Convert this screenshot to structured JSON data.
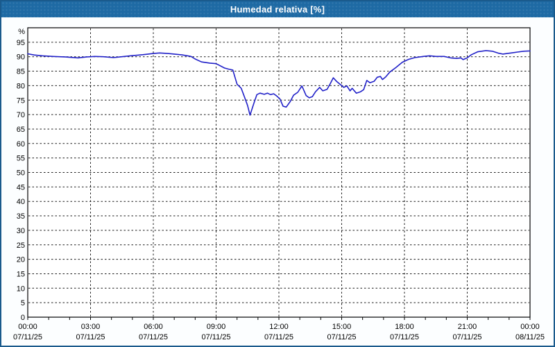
{
  "window": {
    "title": "Humedad relativa [%]"
  },
  "colors": {
    "frame_border": "#1A5A8C",
    "titlebar_bg": "#1E6AA4",
    "titlebar_text": "#FFFFFF",
    "page_bg": "#FCFEFF",
    "plot_bg": "#FFFFFF",
    "plot_border": "#000000",
    "grid": "#1A1A1A",
    "tick": "#000000",
    "label": "#000000",
    "line": "#2020C8"
  },
  "chart_data": {
    "type": "line",
    "title": "Humedad relativa [%]",
    "ylabel": "%",
    "xlabel": "",
    "xlim": [
      0,
      24
    ],
    "ylim": [
      0,
      100
    ],
    "grid": "dashed",
    "legend": "none",
    "ytick_labels": [
      0,
      5,
      10,
      15,
      20,
      25,
      30,
      35,
      40,
      45,
      50,
      55,
      60,
      65,
      70,
      75,
      80,
      85,
      90,
      95
    ],
    "minor_xtick_every_hours": 1,
    "xticks": [
      {
        "h": 0,
        "time": "00:00",
        "date": "07/11/25"
      },
      {
        "h": 3,
        "time": "03:00",
        "date": "07/11/25"
      },
      {
        "h": 6,
        "time": "06:00",
        "date": "07/11/25"
      },
      {
        "h": 9,
        "time": "09:00",
        "date": "07/11/25"
      },
      {
        "h": 12,
        "time": "12:00",
        "date": "07/11/25"
      },
      {
        "h": 15,
        "time": "15:00",
        "date": "07/11/25"
      },
      {
        "h": 18,
        "time": "18:00",
        "date": "07/11/25"
      },
      {
        "h": 21,
        "time": "21:00",
        "date": "07/11/25"
      },
      {
        "h": 24,
        "time": "00:00",
        "date": "08/11/25"
      }
    ],
    "series": [
      {
        "name": "Humedad relativa",
        "color": "#2020C8",
        "points": [
          [
            0.0,
            91.0
          ],
          [
            0.3,
            90.6
          ],
          [
            0.7,
            90.3
          ],
          [
            1.2,
            90.1
          ],
          [
            1.8,
            89.9
          ],
          [
            2.4,
            89.6
          ],
          [
            2.8,
            89.9
          ],
          [
            3.2,
            90.1
          ],
          [
            3.6,
            90.0
          ],
          [
            4.1,
            89.7
          ],
          [
            4.5,
            90.0
          ],
          [
            4.9,
            90.3
          ],
          [
            5.5,
            90.7
          ],
          [
            6.0,
            91.1
          ],
          [
            6.3,
            91.3
          ],
          [
            6.7,
            91.1
          ],
          [
            7.0,
            90.9
          ],
          [
            7.4,
            90.6
          ],
          [
            7.8,
            90.1
          ],
          [
            8.0,
            89.2
          ],
          [
            8.3,
            88.2
          ],
          [
            8.7,
            87.8
          ],
          [
            9.0,
            87.6
          ],
          [
            9.4,
            86.1
          ],
          [
            9.6,
            85.7
          ],
          [
            9.8,
            85.4
          ],
          [
            10.0,
            80.5
          ],
          [
            10.2,
            79.1
          ],
          [
            10.35,
            76.2
          ],
          [
            10.5,
            73.2
          ],
          [
            10.62,
            69.8
          ],
          [
            10.8,
            73.8
          ],
          [
            10.95,
            76.9
          ],
          [
            11.1,
            77.4
          ],
          [
            11.3,
            77.0
          ],
          [
            11.45,
            77.4
          ],
          [
            11.6,
            76.9
          ],
          [
            11.75,
            77.2
          ],
          [
            11.9,
            76.4
          ],
          [
            12.05,
            75.4
          ],
          [
            12.2,
            72.9
          ],
          [
            12.35,
            72.6
          ],
          [
            12.55,
            74.6
          ],
          [
            12.7,
            76.7
          ],
          [
            12.9,
            77.7
          ],
          [
            13.1,
            79.9
          ],
          [
            13.3,
            76.6
          ],
          [
            13.45,
            75.8
          ],
          [
            13.6,
            76.2
          ],
          [
            13.75,
            77.9
          ],
          [
            13.95,
            79.4
          ],
          [
            14.1,
            78.2
          ],
          [
            14.3,
            78.7
          ],
          [
            14.45,
            80.6
          ],
          [
            14.6,
            82.7
          ],
          [
            14.75,
            81.5
          ],
          [
            14.9,
            80.6
          ],
          [
            15.1,
            79.4
          ],
          [
            15.25,
            79.9
          ],
          [
            15.4,
            78.2
          ],
          [
            15.5,
            79.1
          ],
          [
            15.7,
            77.4
          ],
          [
            15.9,
            77.9
          ],
          [
            16.05,
            78.6
          ],
          [
            16.2,
            81.8
          ],
          [
            16.35,
            81.0
          ],
          [
            16.55,
            81.5
          ],
          [
            16.7,
            82.9
          ],
          [
            16.85,
            83.2
          ],
          [
            16.95,
            82.1
          ],
          [
            17.1,
            83.0
          ],
          [
            17.3,
            84.7
          ],
          [
            17.6,
            86.3
          ],
          [
            17.9,
            88.1
          ],
          [
            18.2,
            89.1
          ],
          [
            18.5,
            89.7
          ],
          [
            18.9,
            90.1
          ],
          [
            19.2,
            90.3
          ],
          [
            19.5,
            90.1
          ],
          [
            19.9,
            90.1
          ],
          [
            20.2,
            89.6
          ],
          [
            20.5,
            89.4
          ],
          [
            20.7,
            89.6
          ],
          [
            20.8,
            89.0
          ],
          [
            21.0,
            89.6
          ],
          [
            21.2,
            90.7
          ],
          [
            21.5,
            91.7
          ],
          [
            21.9,
            92.1
          ],
          [
            22.2,
            91.9
          ],
          [
            22.5,
            91.2
          ],
          [
            22.7,
            90.9
          ],
          [
            22.9,
            91.1
          ],
          [
            23.1,
            91.3
          ],
          [
            23.4,
            91.6
          ],
          [
            23.7,
            91.9
          ],
          [
            24.0,
            92.0
          ]
        ]
      }
    ]
  }
}
